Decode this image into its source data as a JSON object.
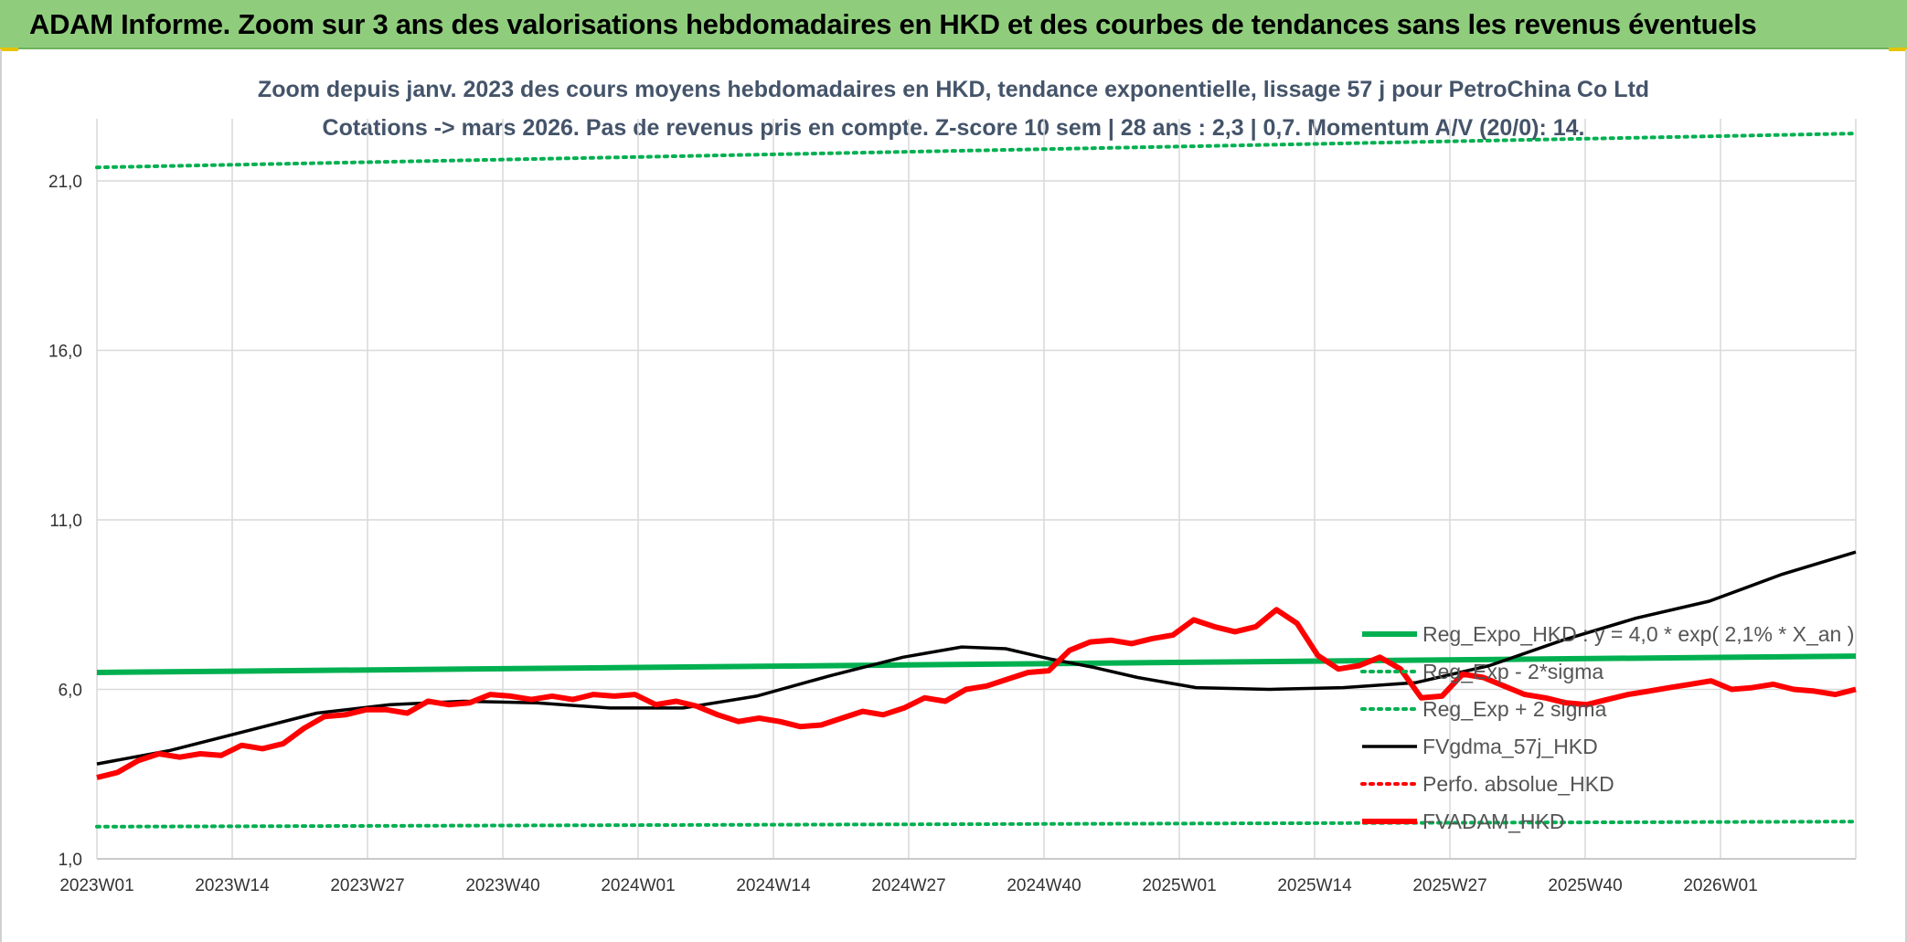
{
  "header": {
    "title": "ADAM Informe. Zoom sur 3 ans des valorisations hebdomadaires en HKD et des courbes de tendances sans les revenus éventuels"
  },
  "chart_data": {
    "type": "line",
    "title": "Zoom depuis janv. 2023 des cours moyens hebdomadaires en HKD, tendance exponentielle, lissage 57 j pour PetroChina Co Ltd",
    "subtitle": "Cotations -> mars 2026. Pas de revenus pris en compte. Z-score 10 sem | 28 ans : 2,3 | 0,7. Momentum A/V (20/0): 14.",
    "xlabel": "",
    "ylabel": "",
    "ylim": [
      1.0,
      21.0
    ],
    "y_ticks": [
      "1,0",
      "6,0",
      "11,0",
      "16,0",
      "21,0"
    ],
    "x_ticks": [
      "2023W01",
      "2023W14",
      "2023W27",
      "2023W40",
      "2024W01",
      "2024W14",
      "2024W27",
      "2024W40",
      "2025W01",
      "2025W14",
      "2025W27",
      "2025W40",
      "2026W01"
    ],
    "weeks_count": 170,
    "grid": true,
    "legend_position": "lower-right",
    "colors": {
      "reg_expo": "#00b050",
      "sigma": "#00b050",
      "fvgdma": "#000000",
      "perfo": "#ff0000",
      "fvadam": "#ff0000"
    },
    "series": [
      {
        "name": "Reg_Expo_HKD : y = 4,0 * exp( 2,1% * X_an )",
        "style": "solid-thick",
        "points": [
          [
            0,
            6.5
          ],
          [
            169,
            6.98
          ]
        ]
      },
      {
        "name": "Reg_Exp - 2*sigma",
        "style": "dotted",
        "points": [
          [
            0,
            1.95
          ],
          [
            169,
            2.1
          ]
        ]
      },
      {
        "name": "Reg_Exp + 2 sigma",
        "style": "dotted",
        "points": [
          [
            0,
            21.4
          ],
          [
            169,
            22.4
          ]
        ]
      },
      {
        "name": "FVgdma_57j_HKD",
        "style": "solid",
        "points": [
          [
            0,
            3.8
          ],
          [
            10,
            4.2
          ],
          [
            20,
            4.75
          ],
          [
            30,
            5.3
          ],
          [
            40,
            5.55
          ],
          [
            50,
            5.65
          ],
          [
            60,
            5.6
          ],
          [
            70,
            5.45
          ],
          [
            80,
            5.45
          ],
          [
            90,
            5.8
          ],
          [
            100,
            6.4
          ],
          [
            110,
            6.95
          ],
          [
            118,
            7.25
          ],
          [
            124,
            7.2
          ],
          [
            130,
            6.9
          ],
          [
            136,
            6.65
          ],
          [
            142,
            6.35
          ],
          [
            150,
            6.05
          ],
          [
            160,
            6.0
          ],
          [
            170,
            6.05
          ],
          [
            180,
            6.2
          ],
          [
            190,
            6.7
          ],
          [
            200,
            7.45
          ],
          [
            210,
            8.1
          ],
          [
            220,
            8.6
          ],
          [
            230,
            9.4
          ],
          [
            240,
            10.05
          ]
        ]
      },
      {
        "name": "Perfo. absolue_HKD",
        "style": "dotted",
        "points": []
      },
      {
        "name": "FVADAM_HKD",
        "style": "solid-thick",
        "points": [
          [
            0,
            3.4
          ],
          [
            2,
            3.55
          ],
          [
            4,
            3.9
          ],
          [
            6,
            4.1
          ],
          [
            8,
            4.0
          ],
          [
            10,
            4.1
          ],
          [
            12,
            4.05
          ],
          [
            14,
            4.35
          ],
          [
            16,
            4.25
          ],
          [
            18,
            4.4
          ],
          [
            20,
            4.85
          ],
          [
            22,
            5.2
          ],
          [
            24,
            5.25
          ],
          [
            26,
            5.4
          ],
          [
            28,
            5.4
          ],
          [
            30,
            5.3
          ],
          [
            32,
            5.65
          ],
          [
            34,
            5.55
          ],
          [
            36,
            5.6
          ],
          [
            38,
            5.85
          ],
          [
            40,
            5.8
          ],
          [
            42,
            5.7
          ],
          [
            44,
            5.8
          ],
          [
            46,
            5.7
          ],
          [
            48,
            5.85
          ],
          [
            50,
            5.8
          ],
          [
            52,
            5.85
          ],
          [
            54,
            5.55
          ],
          [
            56,
            5.65
          ],
          [
            58,
            5.5
          ],
          [
            60,
            5.25
          ],
          [
            62,
            5.05
          ],
          [
            64,
            5.15
          ],
          [
            66,
            5.05
          ],
          [
            68,
            4.9
          ],
          [
            70,
            4.95
          ],
          [
            72,
            5.15
          ],
          [
            74,
            5.35
          ],
          [
            76,
            5.25
          ],
          [
            78,
            5.45
          ],
          [
            80,
            5.75
          ],
          [
            82,
            5.65
          ],
          [
            84,
            6.0
          ],
          [
            86,
            6.1
          ],
          [
            88,
            6.3
          ],
          [
            90,
            6.5
          ],
          [
            92,
            6.55
          ],
          [
            94,
            7.15
          ],
          [
            96,
            7.4
          ],
          [
            98,
            7.45
          ],
          [
            100,
            7.35
          ],
          [
            102,
            7.5
          ],
          [
            104,
            7.6
          ],
          [
            106,
            8.05
          ],
          [
            108,
            7.85
          ],
          [
            110,
            7.7
          ],
          [
            112,
            7.85
          ],
          [
            114,
            8.35
          ],
          [
            116,
            7.95
          ],
          [
            118,
            7.0
          ],
          [
            120,
            6.6
          ],
          [
            122,
            6.7
          ],
          [
            124,
            6.95
          ],
          [
            126,
            6.6
          ],
          [
            128,
            5.75
          ],
          [
            130,
            5.8
          ],
          [
            132,
            6.45
          ],
          [
            134,
            6.35
          ],
          [
            136,
            6.1
          ],
          [
            138,
            5.85
          ],
          [
            140,
            5.75
          ],
          [
            142,
            5.6
          ],
          [
            144,
            5.55
          ],
          [
            146,
            5.7
          ],
          [
            148,
            5.85
          ],
          [
            150,
            5.95
          ],
          [
            152,
            6.05
          ],
          [
            154,
            6.15
          ],
          [
            156,
            6.25
          ],
          [
            158,
            6.0
          ],
          [
            160,
            6.05
          ],
          [
            162,
            6.15
          ],
          [
            164,
            6.0
          ],
          [
            166,
            5.95
          ],
          [
            168,
            5.85
          ],
          [
            170,
            6.0
          ]
        ]
      }
    ]
  },
  "legend": {
    "items": [
      {
        "label": "Reg_Expo_HKD : y = 4,0 * exp( 2,1% *  X_an )",
        "style": "solid-thick",
        "color": "#00b050"
      },
      {
        "label": "Reg_Exp - 2*sigma",
        "style": "dotted",
        "color": "#00b050"
      },
      {
        "label": "Reg_Exp + 2 sigma",
        "style": "dotted",
        "color": "#00b050"
      },
      {
        "label": "FVgdma_57j_HKD",
        "style": "solid",
        "color": "#000000"
      },
      {
        "label": "Perfo. absolue_HKD",
        "style": "dotted",
        "color": "#ff0000"
      },
      {
        "label": "FVADAM_HKD",
        "style": "solid-thick",
        "color": "#ff0000"
      }
    ]
  }
}
